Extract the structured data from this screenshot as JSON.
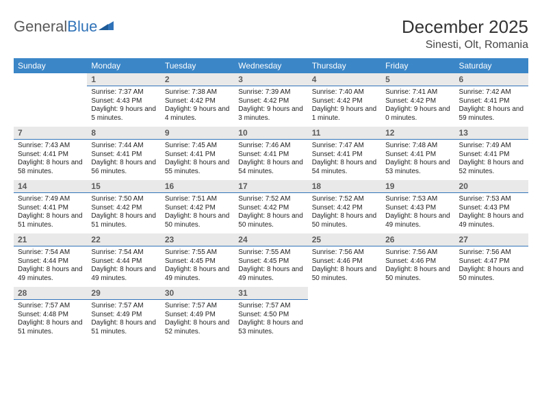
{
  "brand": {
    "part1": "General",
    "part2": "Blue"
  },
  "title": "December 2025",
  "location": "Sinesti, Olt, Romania",
  "colors": {
    "header_bg": "#3b86c7",
    "header_text": "#ffffff",
    "daynum_bg": "#e9e9e9",
    "daynum_border": "#2f72b8",
    "body_bg": "#ffffff",
    "logo_gray": "#5a5a5a",
    "logo_blue": "#2f72b8"
  },
  "typography": {
    "title_fontsize": 26,
    "location_fontsize": 16,
    "dayheader_fontsize": 12,
    "daynum_fontsize": 12,
    "cell_fontsize": 10
  },
  "day_headers": [
    "Sunday",
    "Monday",
    "Tuesday",
    "Wednesday",
    "Thursday",
    "Friday",
    "Saturday"
  ],
  "weeks": [
    [
      {
        "n": "",
        "sunrise": "",
        "sunset": "",
        "daylight": "",
        "empty": true
      },
      {
        "n": "1",
        "sunrise": "Sunrise: 7:37 AM",
        "sunset": "Sunset: 4:43 PM",
        "daylight": "Daylight: 9 hours and 5 minutes."
      },
      {
        "n": "2",
        "sunrise": "Sunrise: 7:38 AM",
        "sunset": "Sunset: 4:42 PM",
        "daylight": "Daylight: 9 hours and 4 minutes."
      },
      {
        "n": "3",
        "sunrise": "Sunrise: 7:39 AM",
        "sunset": "Sunset: 4:42 PM",
        "daylight": "Daylight: 9 hours and 3 minutes."
      },
      {
        "n": "4",
        "sunrise": "Sunrise: 7:40 AM",
        "sunset": "Sunset: 4:42 PM",
        "daylight": "Daylight: 9 hours and 1 minute."
      },
      {
        "n": "5",
        "sunrise": "Sunrise: 7:41 AM",
        "sunset": "Sunset: 4:42 PM",
        "daylight": "Daylight: 9 hours and 0 minutes."
      },
      {
        "n": "6",
        "sunrise": "Sunrise: 7:42 AM",
        "sunset": "Sunset: 4:41 PM",
        "daylight": "Daylight: 8 hours and 59 minutes."
      }
    ],
    [
      {
        "n": "7",
        "sunrise": "Sunrise: 7:43 AM",
        "sunset": "Sunset: 4:41 PM",
        "daylight": "Daylight: 8 hours and 58 minutes."
      },
      {
        "n": "8",
        "sunrise": "Sunrise: 7:44 AM",
        "sunset": "Sunset: 4:41 PM",
        "daylight": "Daylight: 8 hours and 56 minutes."
      },
      {
        "n": "9",
        "sunrise": "Sunrise: 7:45 AM",
        "sunset": "Sunset: 4:41 PM",
        "daylight": "Daylight: 8 hours and 55 minutes."
      },
      {
        "n": "10",
        "sunrise": "Sunrise: 7:46 AM",
        "sunset": "Sunset: 4:41 PM",
        "daylight": "Daylight: 8 hours and 54 minutes."
      },
      {
        "n": "11",
        "sunrise": "Sunrise: 7:47 AM",
        "sunset": "Sunset: 4:41 PM",
        "daylight": "Daylight: 8 hours and 54 minutes."
      },
      {
        "n": "12",
        "sunrise": "Sunrise: 7:48 AM",
        "sunset": "Sunset: 4:41 PM",
        "daylight": "Daylight: 8 hours and 53 minutes."
      },
      {
        "n": "13",
        "sunrise": "Sunrise: 7:49 AM",
        "sunset": "Sunset: 4:41 PM",
        "daylight": "Daylight: 8 hours and 52 minutes."
      }
    ],
    [
      {
        "n": "14",
        "sunrise": "Sunrise: 7:49 AM",
        "sunset": "Sunset: 4:41 PM",
        "daylight": "Daylight: 8 hours and 51 minutes."
      },
      {
        "n": "15",
        "sunrise": "Sunrise: 7:50 AM",
        "sunset": "Sunset: 4:42 PM",
        "daylight": "Daylight: 8 hours and 51 minutes."
      },
      {
        "n": "16",
        "sunrise": "Sunrise: 7:51 AM",
        "sunset": "Sunset: 4:42 PM",
        "daylight": "Daylight: 8 hours and 50 minutes."
      },
      {
        "n": "17",
        "sunrise": "Sunrise: 7:52 AM",
        "sunset": "Sunset: 4:42 PM",
        "daylight": "Daylight: 8 hours and 50 minutes."
      },
      {
        "n": "18",
        "sunrise": "Sunrise: 7:52 AM",
        "sunset": "Sunset: 4:42 PM",
        "daylight": "Daylight: 8 hours and 50 minutes."
      },
      {
        "n": "19",
        "sunrise": "Sunrise: 7:53 AM",
        "sunset": "Sunset: 4:43 PM",
        "daylight": "Daylight: 8 hours and 49 minutes."
      },
      {
        "n": "20",
        "sunrise": "Sunrise: 7:53 AM",
        "sunset": "Sunset: 4:43 PM",
        "daylight": "Daylight: 8 hours and 49 minutes."
      }
    ],
    [
      {
        "n": "21",
        "sunrise": "Sunrise: 7:54 AM",
        "sunset": "Sunset: 4:44 PM",
        "daylight": "Daylight: 8 hours and 49 minutes."
      },
      {
        "n": "22",
        "sunrise": "Sunrise: 7:54 AM",
        "sunset": "Sunset: 4:44 PM",
        "daylight": "Daylight: 8 hours and 49 minutes."
      },
      {
        "n": "23",
        "sunrise": "Sunrise: 7:55 AM",
        "sunset": "Sunset: 4:45 PM",
        "daylight": "Daylight: 8 hours and 49 minutes."
      },
      {
        "n": "24",
        "sunrise": "Sunrise: 7:55 AM",
        "sunset": "Sunset: 4:45 PM",
        "daylight": "Daylight: 8 hours and 49 minutes."
      },
      {
        "n": "25",
        "sunrise": "Sunrise: 7:56 AM",
        "sunset": "Sunset: 4:46 PM",
        "daylight": "Daylight: 8 hours and 50 minutes."
      },
      {
        "n": "26",
        "sunrise": "Sunrise: 7:56 AM",
        "sunset": "Sunset: 4:46 PM",
        "daylight": "Daylight: 8 hours and 50 minutes."
      },
      {
        "n": "27",
        "sunrise": "Sunrise: 7:56 AM",
        "sunset": "Sunset: 4:47 PM",
        "daylight": "Daylight: 8 hours and 50 minutes."
      }
    ],
    [
      {
        "n": "28",
        "sunrise": "Sunrise: 7:57 AM",
        "sunset": "Sunset: 4:48 PM",
        "daylight": "Daylight: 8 hours and 51 minutes."
      },
      {
        "n": "29",
        "sunrise": "Sunrise: 7:57 AM",
        "sunset": "Sunset: 4:49 PM",
        "daylight": "Daylight: 8 hours and 51 minutes."
      },
      {
        "n": "30",
        "sunrise": "Sunrise: 7:57 AM",
        "sunset": "Sunset: 4:49 PM",
        "daylight": "Daylight: 8 hours and 52 minutes."
      },
      {
        "n": "31",
        "sunrise": "Sunrise: 7:57 AM",
        "sunset": "Sunset: 4:50 PM",
        "daylight": "Daylight: 8 hours and 53 minutes."
      },
      {
        "n": "",
        "sunrise": "",
        "sunset": "",
        "daylight": "",
        "empty": true
      },
      {
        "n": "",
        "sunrise": "",
        "sunset": "",
        "daylight": "",
        "empty": true
      },
      {
        "n": "",
        "sunrise": "",
        "sunset": "",
        "daylight": "",
        "empty": true
      }
    ]
  ]
}
